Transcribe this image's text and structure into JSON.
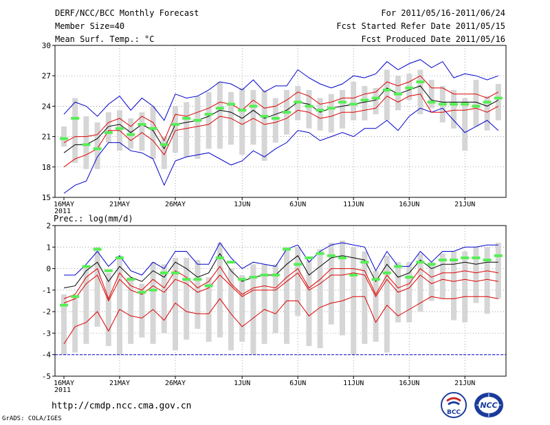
{
  "header": {
    "title": "DERF/NCC/BCC Monthly Forecast",
    "member_size": "Member Size=40",
    "variable": "Mean Surf. Temp.: °C",
    "period": "For 2011/05/16-2011/06/24",
    "refer_date": "Fcst Started Refer Date 2011/05/15",
    "produced_date": "Fcst Produced Date 2011/05/16"
  },
  "footer": {
    "url": "http://cmdp.ncc.cma.gov.cn",
    "credit": "GrADS: COLA/IGES",
    "logo_bcc": "BCC",
    "logo_ncc": "NCC"
  },
  "colors": {
    "mean": "#000000",
    "sd": "#dd0000",
    "extreme": "#0000cc",
    "box": "#d6d6d6",
    "clim": "#55ee55"
  },
  "chart_data": [
    {
      "type": "box",
      "title": "Mean Surf. Temp.: °C",
      "ylim": [
        15,
        30
      ],
      "yticks": [
        15,
        18,
        21,
        24,
        27,
        30
      ],
      "xticks": [
        {
          "day": 0,
          "label": "16MAY",
          "sub": "2011"
        },
        {
          "day": 5,
          "label": "21MAY"
        },
        {
          "day": 10,
          "label": "26MAY"
        },
        {
          "day": 16,
          "label": "1JUN"
        },
        {
          "day": 21,
          "label": "6JUN"
        },
        {
          "day": 26,
          "label": "11JUN"
        },
        {
          "day": 31,
          "label": "16JUN"
        },
        {
          "day": 36,
          "label": "21JUN"
        }
      ],
      "max": [
        15.4,
        16.2,
        16.6,
        19.0,
        20.4,
        20.4,
        19.6,
        19.4,
        18.8,
        16.2,
        18.6,
        19.0,
        19.2,
        19.4,
        18.8,
        18.2,
        18.6,
        19.6,
        19.0,
        19.8,
        20.4,
        21.6,
        21.4,
        20.6,
        21.0,
        21.4,
        21.0,
        21.8,
        21.8,
        22.6,
        21.6,
        23.0,
        23.8,
        23.4,
        23.8,
        22.6,
        21.4,
        22.0,
        22.6,
        21.6
      ],
      "upper": [
        23.2,
        24.4,
        24.0,
        23.0,
        24.2,
        25.0,
        23.6,
        24.8,
        24.0,
        22.6,
        25.2,
        24.8,
        25.0,
        25.6,
        26.4,
        26.2,
        25.6,
        26.6,
        25.4,
        26.0,
        26.0,
        27.6,
        26.8,
        26.2,
        25.8,
        26.2,
        27.0,
        26.8,
        27.2,
        28.4,
        27.6,
        28.2,
        28.6,
        27.8,
        28.4,
        26.8,
        27.2,
        27.0,
        26.6,
        27.0
      ],
      "p_hi": [
        20.4,
        21.0,
        21.0,
        21.2,
        22.4,
        22.8,
        22.0,
        23.0,
        22.4,
        20.6,
        23.2,
        23.0,
        23.4,
        23.8,
        24.4,
        24.2,
        23.6,
        24.6,
        23.8,
        24.0,
        24.6,
        25.4,
        25.0,
        24.2,
        24.4,
        24.8,
        24.8,
        25.2,
        25.4,
        26.4,
        26.0,
        26.4,
        27.0,
        25.8,
        25.8,
        25.2,
        25.2,
        25.2,
        24.8,
        25.4
      ],
      "mean": [
        19.4,
        20.2,
        20.2,
        20.8,
        22.0,
        22.2,
        21.4,
        22.2,
        21.6,
        19.8,
        22.2,
        22.4,
        22.6,
        23.0,
        23.6,
        23.4,
        22.8,
        23.6,
        22.8,
        23.2,
        23.6,
        24.4,
        24.2,
        23.4,
        23.8,
        24.0,
        24.2,
        24.4,
        24.6,
        25.8,
        25.2,
        25.6,
        26.0,
        24.6,
        24.4,
        24.4,
        24.4,
        24.4,
        24.0,
        24.6
      ],
      "p_lo": [
        18.0,
        18.8,
        19.2,
        19.8,
        21.6,
        21.6,
        20.6,
        21.4,
        20.6,
        19.2,
        21.6,
        21.8,
        22.0,
        22.2,
        23.0,
        22.8,
        22.2,
        22.8,
        22.2,
        22.4,
        22.8,
        23.6,
        23.4,
        22.8,
        23.0,
        23.4,
        23.4,
        23.6,
        23.8,
        25.0,
        24.4,
        25.0,
        25.2,
        23.4,
        23.4,
        23.6,
        23.6,
        23.8,
        23.4,
        24.0
      ],
      "box_hi": [
        22.0,
        24.8,
        23.0,
        22.4,
        23.4,
        23.6,
        22.8,
        23.4,
        24.0,
        21.0,
        24.0,
        24.4,
        25.0,
        25.4,
        26.4,
        25.4,
        25.8,
        25.6,
        25.6,
        24.8,
        25.6,
        26.0,
        25.6,
        24.8,
        25.2,
        25.6,
        26.4,
        26.0,
        25.8,
        27.6,
        27.0,
        27.2,
        27.6,
        26.6,
        26.0,
        25.6,
        24.8,
        26.6,
        25.0,
        26.2
      ],
      "box_lo": [
        20.0,
        18.4,
        17.8,
        17.8,
        20.4,
        19.6,
        19.8,
        19.6,
        18.8,
        17.8,
        19.4,
        19.0,
        18.8,
        19.8,
        19.8,
        20.2,
        19.2,
        20.2,
        18.6,
        20.4,
        21.2,
        22.6,
        21.8,
        21.6,
        21.4,
        21.8,
        22.6,
        22.6,
        23.2,
        22.6,
        23.6,
        24.6,
        23.2,
        23.8,
        22.4,
        21.8,
        19.6,
        22.0,
        21.6,
        22.6
      ],
      "clim": [
        20.8,
        22.8,
        20.2,
        19.8,
        21.4,
        21.8,
        21.2,
        22.2,
        21.8,
        20.2,
        22.2,
        22.8,
        22.6,
        23.2,
        23.8,
        24.2,
        23.6,
        24.0,
        23.0,
        22.8,
        23.4,
        24.4,
        24.0,
        23.6,
        23.8,
        24.4,
        24.2,
        24.6,
        24.8,
        25.6,
        25.2,
        25.8,
        26.4,
        24.4,
        24.2,
        24.2,
        24.2,
        24.0,
        24.4,
        24.8
      ]
    },
    {
      "type": "box",
      "title": "Prec.: log(mm/d)",
      "ylim": [
        -5,
        2
      ],
      "yticks": [
        -5,
        -4,
        -3,
        -2,
        -1,
        0,
        1,
        2
      ],
      "baseline": -4,
      "xticks": [
        {
          "day": 0,
          "label": "16MAY",
          "sub": "2011"
        },
        {
          "day": 5,
          "label": "21MAY"
        },
        {
          "day": 10,
          "label": "26MAY"
        },
        {
          "day": 16,
          "label": "1JUN"
        },
        {
          "day": 21,
          "label": "6JUN"
        },
        {
          "day": 26,
          "label": "11JUN"
        },
        {
          "day": 31,
          "label": "16JUN"
        },
        {
          "day": 36,
          "label": "21JUN"
        }
      ],
      "max": [
        -0.3,
        -0.3,
        0.2,
        0.8,
        0.1,
        0.6,
        -0.1,
        -0.3,
        0.3,
        0.0,
        0.8,
        0.8,
        0.2,
        0.2,
        1.2,
        0.5,
        0.0,
        0.3,
        0.2,
        0.1,
        0.9,
        1.1,
        0.3,
        0.8,
        1.1,
        1.2,
        1.1,
        1.0,
        -0.1,
        0.8,
        0.1,
        0.1,
        0.8,
        0.3,
        0.8,
        0.8,
        1.0,
        1.0,
        1.1,
        1.1
      ],
      "upper": [
        -0.3,
        -0.3,
        0.2,
        0.8,
        0.1,
        0.6,
        -0.1,
        -0.3,
        0.3,
        0.0,
        0.8,
        0.8,
        0.2,
        0.2,
        1.2,
        0.5,
        0.0,
        0.3,
        0.2,
        0.1,
        0.9,
        1.1,
        0.3,
        0.8,
        1.1,
        1.2,
        1.1,
        1.0,
        -0.1,
        0.8,
        0.1,
        0.1,
        0.8,
        0.3,
        0.8,
        0.8,
        1.0,
        1.0,
        1.1,
        1.1
      ],
      "p_hi": [
        -1.4,
        -1.2,
        -0.4,
        0.0,
        -1.4,
        -0.2,
        -0.8,
        -1.0,
        -0.5,
        -0.9,
        -0.1,
        -0.4,
        -0.9,
        -0.6,
        0.1,
        -0.7,
        -1.2,
        -0.9,
        -0.8,
        -0.9,
        -0.4,
        0.0,
        -0.9,
        -0.5,
        0.0,
        0.0,
        0.0,
        -0.1,
        -1.2,
        -0.3,
        -0.9,
        -0.7,
        0.0,
        -0.4,
        -0.2,
        -0.2,
        -0.1,
        -0.2,
        -0.1,
        -0.2
      ],
      "mean": [
        -0.9,
        -0.8,
        -0.1,
        0.3,
        -0.6,
        0.1,
        -0.4,
        -0.6,
        -0.1,
        -0.4,
        0.3,
        0.0,
        -0.4,
        -0.2,
        0.7,
        -0.1,
        -0.6,
        -0.4,
        -0.3,
        -0.3,
        0.2,
        0.6,
        -0.3,
        0.1,
        0.5,
        0.6,
        0.5,
        0.4,
        -0.6,
        0.2,
        -0.4,
        -0.2,
        0.4,
        0.0,
        0.2,
        0.2,
        0.3,
        0.2,
        0.3,
        0.3
      ],
      "p_lo": [
        -1.6,
        -1.4,
        -0.7,
        -0.3,
        -1.5,
        -0.5,
        -1.0,
        -1.2,
        -0.8,
        -1.1,
        -0.5,
        -0.7,
        -1.1,
        -0.9,
        -0.3,
        -0.8,
        -1.3,
        -1.0,
        -1.0,
        -1.0,
        -0.6,
        -0.2,
        -1.0,
        -0.7,
        -0.3,
        -0.3,
        -0.2,
        -0.3,
        -1.3,
        -0.5,
        -1.1,
        -0.9,
        -0.3,
        -0.7,
        -0.5,
        -0.6,
        -0.5,
        -0.6,
        -0.5,
        -0.6
      ],
      "min": [
        -3.5,
        -2.7,
        -2.5,
        -2.0,
        -2.9,
        -1.9,
        -2.2,
        -2.3,
        -1.9,
        -2.4,
        -1.6,
        -2.0,
        -2.1,
        -2.1,
        -1.4,
        -2.1,
        -2.7,
        -2.3,
        -1.9,
        -2.1,
        -1.5,
        -1.5,
        -2.2,
        -1.8,
        -1.6,
        -1.5,
        -1.3,
        -1.3,
        -2.5,
        -1.7,
        -2.2,
        -1.9,
        -1.6,
        -1.3,
        -1.4,
        -1.4,
        -1.3,
        -1.3,
        -1.3,
        -1.4
      ],
      "box_hi": [
        -1.2,
        -1.3,
        0.1,
        1.0,
        -0.2,
        0.6,
        -0.4,
        -0.7,
        0.3,
        0.2,
        0.5,
        0.5,
        0.4,
        -0.4,
        1.2,
        0.0,
        -0.3,
        0.2,
        0.2,
        0.2,
        1.0,
        1.0,
        0.4,
        0.9,
        1.2,
        1.3,
        1.0,
        0.8,
        -0.1,
        0.6,
        0.3,
        0.3,
        0.7,
        0.3,
        0.7,
        0.8,
        0.8,
        1.0,
        1.0,
        1.2
      ],
      "box_lo": [
        -4.0,
        -3.9,
        -3.5,
        -2.7,
        -3.6,
        -4.0,
        -3.5,
        -3.2,
        -3.5,
        -3.0,
        -3.8,
        -3.3,
        -2.8,
        -3.4,
        -3.2,
        -3.8,
        -3.4,
        -4.0,
        -3.5,
        -3.0,
        -3.5,
        -2.2,
        -3.6,
        -3.7,
        -2.6,
        -3.1,
        -4.0,
        -3.5,
        -3.4,
        -3.9,
        -2.5,
        -2.5,
        -2.0,
        -1.5,
        -1.4,
        -2.4,
        -2.5,
        -1.6,
        -2.1,
        -1.4
      ],
      "clim": [
        -1.7,
        -1.3,
        0.1,
        0.9,
        -0.1,
        0.5,
        -0.5,
        -1.1,
        -1.0,
        -0.2,
        -0.2,
        -0.5,
        -0.5,
        -0.8,
        0.5,
        0.3,
        -0.5,
        -0.4,
        -0.3,
        -0.3,
        0.9,
        0.2,
        0.5,
        0.7,
        0.6,
        0.5,
        -0.3,
        0.3,
        -0.5,
        -0.2,
        0.1,
        -0.4,
        0.3,
        0.2,
        0.4,
        0.4,
        0.5,
        0.5,
        0.4,
        0.6
      ]
    }
  ]
}
